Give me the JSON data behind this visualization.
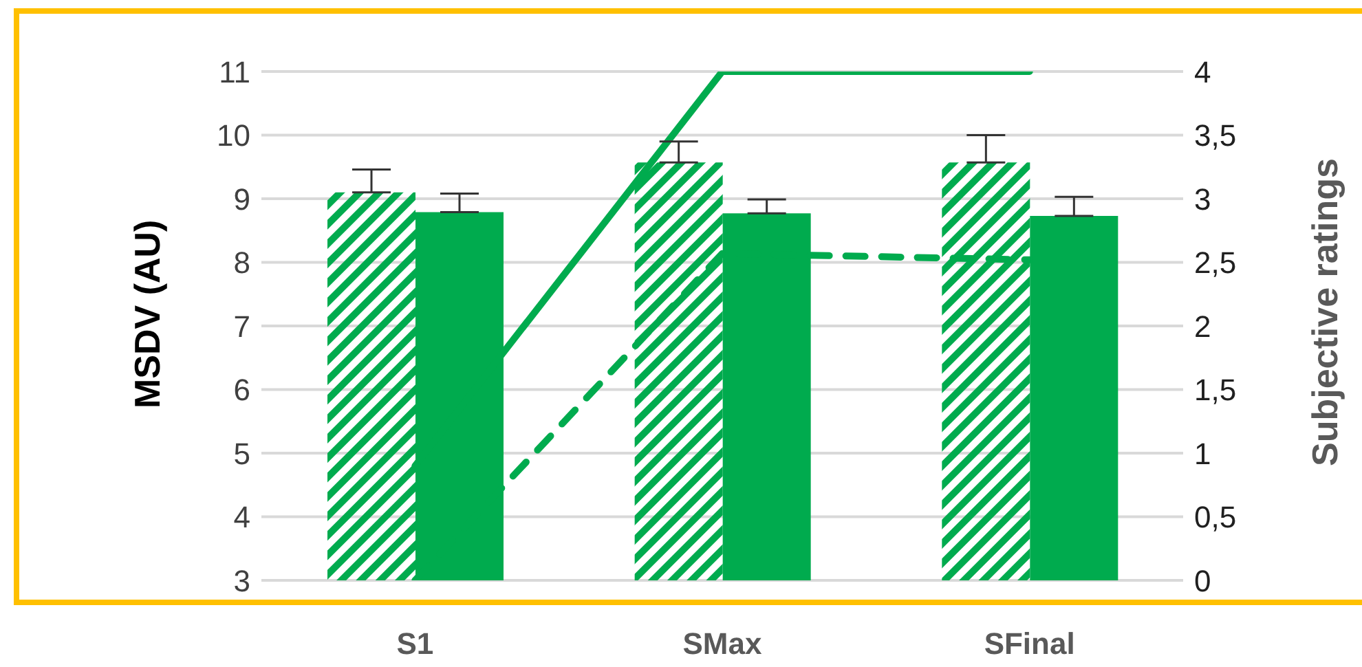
{
  "chart_data": {
    "type": "bar",
    "categories": [
      "S1",
      "SMax",
      "SFinal"
    ],
    "ylabel": "MSDV (AU)",
    "y2label": "Subjective ratings",
    "series": [
      {
        "color": "#00ab4e",
        "values": [
          9.1,
          9.57,
          9.57
        ],
        "errors": [
          [
            9.1,
            9.46
          ],
          [
            9.57,
            9.9
          ],
          [
            9.57,
            10.0
          ]
        ]
      },
      {
        "color": "#00ab4e",
        "values": [
          8.79,
          8.77,
          8.73
        ],
        "errors": [
          [
            8.79,
            9.08
          ],
          [
            8.77,
            8.99
          ],
          [
            8.73,
            9.03
          ]
        ]
      },
      {
        "type": "line",
        "axis": "y2",
        "color": "#00ab4e",
        "line_style": "solid",
        "values": [
          0.9,
          4,
          4
        ]
      },
      {
        "type": "line",
        "axis": "y2",
        "color": "#00ab4e",
        "line_style": "dashed",
        "values": [
          0,
          2.57,
          2.52
        ]
      }
    ],
    "ylim": [
      3,
      11
    ],
    "yticks": [
      3,
      4,
      5,
      6,
      7,
      8,
      9,
      10,
      11
    ],
    "y2lim": [
      0,
      4
    ],
    "y2ticks": [
      0,
      {
        "value": 0.5,
        "label": "0,5"
      },
      1,
      {
        "value": 1.5,
        "label": "1,5"
      },
      2,
      {
        "value": 2.5,
        "label": "2,5"
      },
      3,
      {
        "value": 3.5,
        "label": "3,5"
      },
      4
    ],
    "grid": "y",
    "legend": false,
    "marker": "none"
  }
}
